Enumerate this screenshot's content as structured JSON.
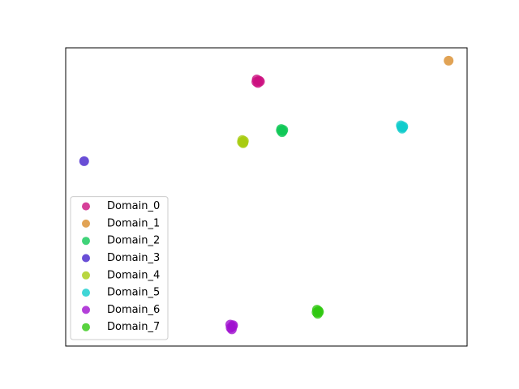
{
  "chart_data": {
    "type": "scatter",
    "xlim": [
      0,
      100
    ],
    "ylim": [
      0,
      100
    ],
    "legend": "lower left",
    "series": [
      {
        "name": "Domain_0",
        "color": "#cc1080",
        "x": [
          47.6,
          48.2,
          47.9,
          48.4,
          47.5
        ],
        "y": [
          89.4,
          89.0,
          88.2,
          88.7,
          88.6
        ]
      },
      {
        "name": "Domain_1",
        "color": "#d98c2a",
        "x": [
          95.4
        ],
        "y": [
          95.7
        ]
      },
      {
        "name": "Domain_2",
        "color": "#10c858",
        "x": [
          53.7,
          54.2,
          53.9,
          54.1,
          53.6
        ],
        "y": [
          72.8,
          72.5,
          71.7,
          72.1,
          72.3
        ]
      },
      {
        "name": "Domain_3",
        "color": "#4422cc",
        "x": [
          4.6
        ],
        "y": [
          62.0
        ]
      },
      {
        "name": "Domain_4",
        "color": "#a8cc10",
        "x": [
          44.0,
          44.4,
          44.2,
          43.9,
          44.3
        ],
        "y": [
          69.1,
          68.8,
          68.0,
          68.4,
          68.2
        ]
      },
      {
        "name": "Domain_5",
        "color": "#10cccc",
        "x": [
          83.5,
          84.1,
          83.8,
          84.0,
          83.6
        ],
        "y": [
          74.0,
          73.6,
          72.9,
          73.3,
          73.5
        ]
      },
      {
        "name": "Domain_6",
        "color": "#a010d0",
        "x": [
          41.0,
          41.7,
          41.4,
          41.1,
          41.6
        ],
        "y": [
          7.2,
          7.0,
          5.6,
          6.1,
          6.6
        ]
      },
      {
        "name": "Domain_7",
        "color": "#30c810",
        "x": [
          62.6,
          63.0,
          62.8,
          62.5,
          63.1
        ],
        "y": [
          12.2,
          11.8,
          10.8,
          11.3,
          11.4
        ]
      }
    ]
  }
}
